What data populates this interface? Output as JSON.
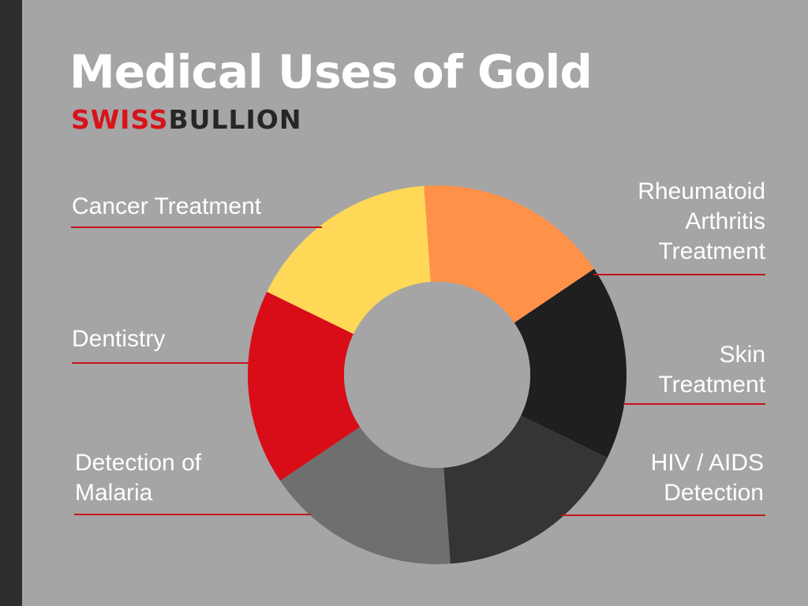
{
  "title": "Medical Uses of Gold",
  "brand": {
    "part1": "SWISS",
    "part2": "BULLION",
    "part1_color": "#d7141b",
    "part2_color": "#262626"
  },
  "colors": {
    "background": "#a5a5a5",
    "side_bar": "#2e2e2e",
    "leader_line": "#c4141b"
  },
  "chart_data": {
    "type": "pie",
    "donut": true,
    "title": "Medical Uses of Gold",
    "legend": "none",
    "slices": [
      {
        "label": "Rheumatoid\nArthritis\nTreatment",
        "value": 1,
        "color": "#ff9149"
      },
      {
        "label": "Skin\nTreatment",
        "value": 1,
        "color": "#1f1f1f"
      },
      {
        "label": "HIV / AIDS\nDetection",
        "value": 1,
        "color": "#353535"
      },
      {
        "label": "Detection of\nMalaria",
        "value": 1,
        "color": "#6f6f6f"
      },
      {
        "label": "Dentistry",
        "value": 1,
        "color": "#d80d17"
      },
      {
        "label": "Cancer Treatment",
        "value": 1,
        "color": "#ffd858"
      }
    ]
  }
}
